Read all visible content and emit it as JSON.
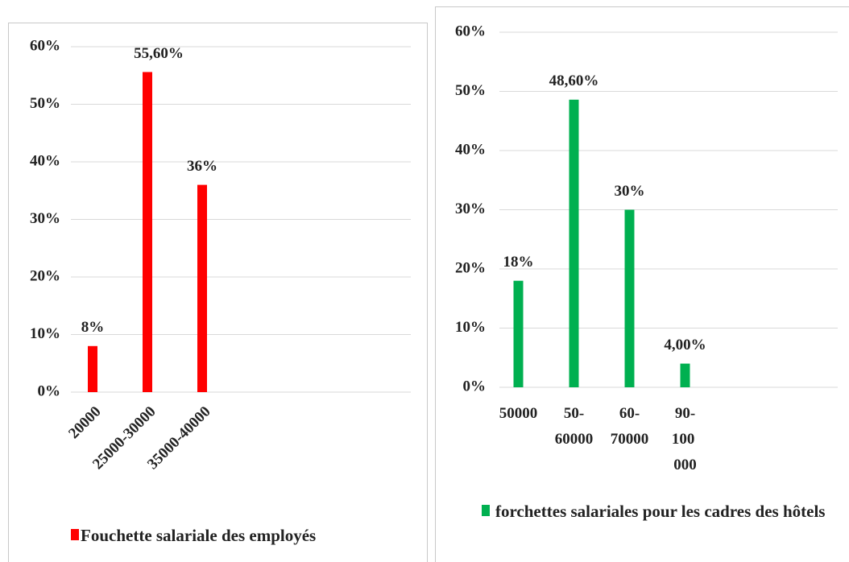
{
  "chart_data": [
    {
      "type": "bar",
      "categories": [
        "20000",
        "25000-30000",
        "35000-40000"
      ],
      "series": [
        {
          "name": "Fouchette salariale des employés",
          "color": "#ff0000",
          "values": [
            8,
            55.6,
            36
          ],
          "value_labels": [
            "8%",
            "55,60%",
            "36%"
          ]
        }
      ],
      "ylim": [
        0,
        60
      ],
      "yticks": [
        {
          "value": 0,
          "label": "0%"
        },
        {
          "value": 10,
          "label": "10%"
        },
        {
          "value": 20,
          "label": "20%"
        },
        {
          "value": 30,
          "label": "30%"
        },
        {
          "value": 40,
          "label": "40%"
        },
        {
          "value": 50,
          "label": "50%"
        },
        {
          "value": 60,
          "label": "60%"
        }
      ],
      "grid": true,
      "legend": "bottom"
    },
    {
      "type": "bar",
      "categories": [
        "50000",
        "50-60000",
        "60-70000",
        "90-100 000"
      ],
      "series": [
        {
          "name": "forchettes salariales pour les cadres des hôtels",
          "color": "#00b050",
          "values": [
            18,
            48.6,
            30,
            4
          ],
          "value_labels": [
            "18%",
            "48,60%",
            "30%",
            "4,00%"
          ]
        }
      ],
      "ylim": [
        0,
        60
      ],
      "yticks": [
        {
          "value": 0,
          "label": "0%"
        },
        {
          "value": 10,
          "label": "10%"
        },
        {
          "value": 20,
          "label": "20%"
        },
        {
          "value": 30,
          "label": "30%"
        },
        {
          "value": 40,
          "label": "40%"
        },
        {
          "value": 50,
          "label": "50%"
        },
        {
          "value": 60,
          "label": "60%"
        }
      ],
      "grid": true,
      "legend": "bottom"
    }
  ]
}
